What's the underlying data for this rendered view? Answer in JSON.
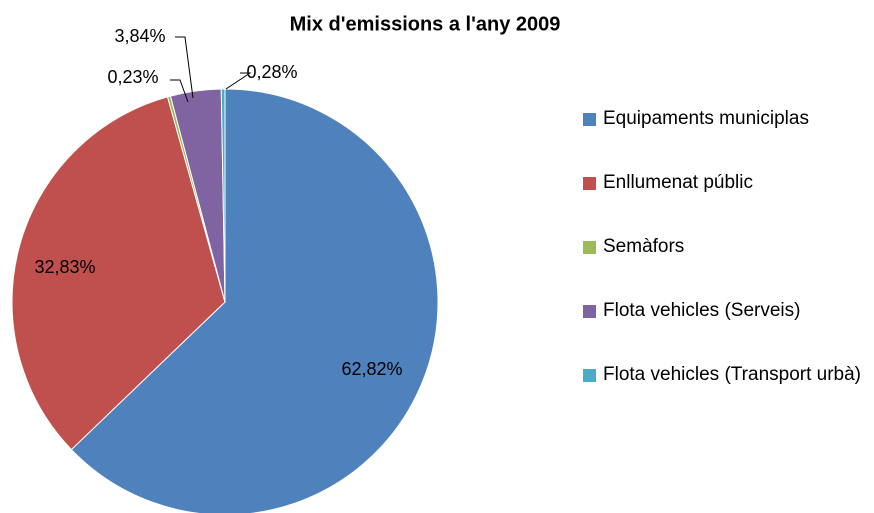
{
  "chart_data": {
    "type": "pie",
    "title": "Mix d'emissions a l'any 2009",
    "categories": [
      "Equipaments municiplas",
      "Enllumenat públic",
      "Semàfors",
      "Flota vehicles (Serveis)",
      "Flota vehicles (Transport urbà)"
    ],
    "values": [
      62.82,
      32.83,
      0.23,
      3.84,
      0.28
    ],
    "value_labels": [
      "62,82%",
      "32,83%",
      "0,23%",
      "3,84%",
      "0,28%"
    ],
    "colors": [
      "#4f81bd",
      "#c0504d",
      "#9bbb59",
      "#8064a2",
      "#4bacc6"
    ],
    "legend": "right"
  }
}
